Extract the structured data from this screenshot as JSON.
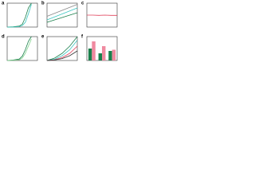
{
  "chart_data": [
    {
      "type": "line",
      "label": "a",
      "x": [
        0,
        0.2,
        0.4,
        0.5,
        0.6,
        0.7,
        0.8
      ],
      "series": [
        {
          "color": "#1a7f4b",
          "values": [
            0,
            1,
            4,
            12,
            40,
            80,
            100
          ]
        },
        {
          "color": "#39c6c0",
          "values": [
            0,
            0,
            2,
            6,
            20,
            55,
            95
          ]
        }
      ],
      "xlim": [
        0,
        1
      ],
      "ylim": [
        0,
        100
      ]
    },
    {
      "type": "line",
      "label": "b",
      "x": [
        0,
        1
      ],
      "series": [
        {
          "color": "#1a7f4b",
          "values": [
            20,
            60
          ]
        },
        {
          "color": "#39c6c0",
          "values": [
            30,
            80
          ]
        },
        {
          "color": "#888888",
          "values": [
            45,
            95
          ]
        }
      ],
      "xlim": [
        0,
        1
      ],
      "ylim": [
        0,
        100
      ]
    },
    {
      "type": "line",
      "label": "c",
      "x": [
        0,
        10,
        20,
        30,
        40,
        50
      ],
      "series": [
        {
          "color": "#e0405a",
          "values": [
            50,
            50,
            49,
            50,
            49,
            49
          ]
        }
      ],
      "xlim": [
        0,
        50
      ],
      "ylim": [
        0,
        100
      ]
    },
    {
      "type": "line",
      "label": "d",
      "x": [
        0,
        0.2,
        0.4,
        0.5,
        0.6,
        0.7,
        0.8
      ],
      "series": [
        {
          "color": "#1a7f4b",
          "values": [
            0,
            2,
            6,
            18,
            45,
            80,
            100
          ]
        },
        {
          "color": "#7fd18b",
          "values": [
            0,
            1,
            3,
            10,
            30,
            60,
            90
          ]
        }
      ],
      "xlim": [
        0,
        1
      ],
      "ylim": [
        0,
        100
      ]
    },
    {
      "type": "line",
      "label": "e",
      "x": [
        0,
        0.25,
        0.5,
        0.75,
        1
      ],
      "series": [
        {
          "color": "#1a7f4b",
          "values": [
            0,
            10,
            30,
            60,
            100
          ]
        },
        {
          "color": "#39c6c0",
          "values": [
            0,
            5,
            20,
            45,
            85
          ]
        },
        {
          "color": "#e0405a",
          "values": [
            0,
            3,
            12,
            30,
            60
          ]
        },
        {
          "color": "#333333",
          "values": [
            0,
            2,
            8,
            20,
            40
          ]
        }
      ],
      "xlim": [
        0,
        1
      ],
      "ylim": [
        0,
        100
      ]
    },
    {
      "type": "bar",
      "label": "f",
      "categories": [
        null,
        null,
        null
      ],
      "series": [
        {
          "color": "#1a7f4b",
          "values": [
            50,
            30,
            40
          ]
        },
        {
          "color": "#f08aa0",
          "values": [
            80,
            60,
            45
          ]
        }
      ],
      "ylim": [
        0,
        100
      ]
    }
  ]
}
